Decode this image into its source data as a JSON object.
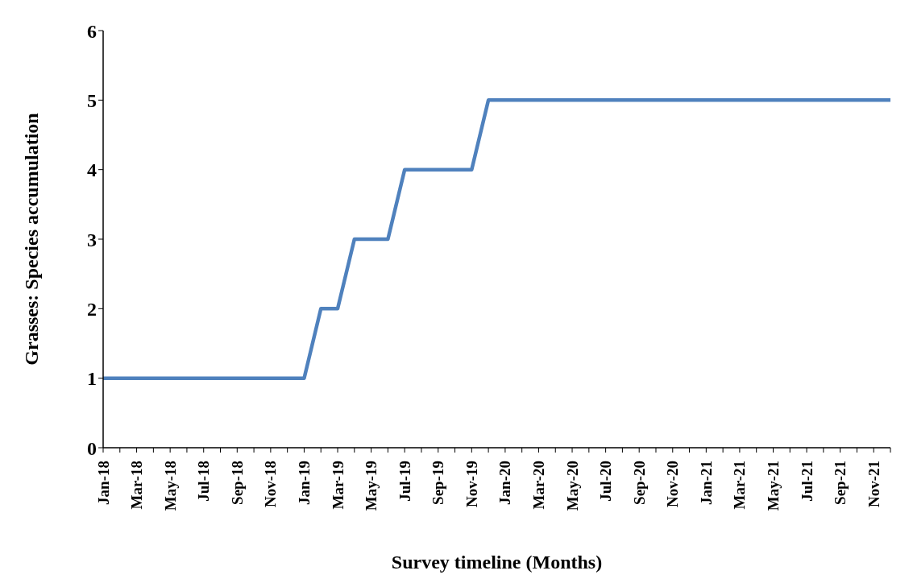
{
  "chart_data": {
    "type": "line",
    "xlabel": "Survey timeline (Months)",
    "ylabel": "Grasses: Species accumulation",
    "categories": [
      "Jan-18",
      null,
      "Mar-18",
      null,
      "May-18",
      null,
      "Jul-18",
      null,
      "Sep-18",
      null,
      "Nov-18",
      null,
      "Jan-19",
      null,
      "Mar-19",
      null,
      "May-19",
      null,
      "Jul-19",
      null,
      "Sep-19",
      null,
      "Nov-19",
      null,
      "Jan-20",
      null,
      "Mar-20",
      null,
      "May-20",
      null,
      "Jul-20",
      null,
      "Sep-20",
      null,
      "Nov-20",
      null,
      "Jan-21",
      null,
      "Mar-21",
      null,
      "May-21",
      null,
      "Jul-21",
      null,
      "Sep-21",
      null,
      "Nov-21",
      null
    ],
    "series": [
      {
        "color": "#4f81bd",
        "values": [
          1,
          1,
          1,
          1,
          1,
          1,
          1,
          1,
          1,
          1,
          1,
          1,
          1,
          2,
          2,
          3,
          3,
          3,
          4,
          4,
          4,
          4,
          4,
          5,
          5,
          5,
          5,
          5,
          5,
          5,
          5,
          5,
          5,
          5,
          5,
          5,
          5,
          5,
          5,
          5,
          5,
          5,
          5,
          5,
          5,
          5,
          5,
          5
        ]
      }
    ],
    "ylim": [
      0,
      6
    ],
    "yticks": [
      0,
      1,
      2,
      3,
      4,
      5,
      6
    ],
    "grid": false,
    "legend": false,
    "marker": "none",
    "line_style": "solid"
  }
}
